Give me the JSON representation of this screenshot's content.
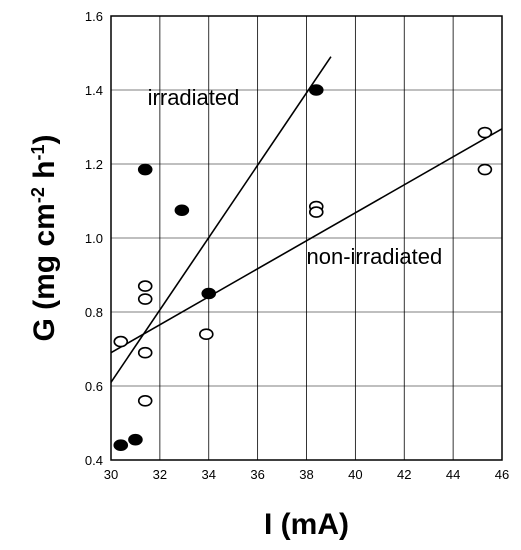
{
  "chart_data": {
    "type": "scatter",
    "xlabel": "I (mA)",
    "ylabel_parts": [
      "G (mg cm",
      "-2",
      " h",
      "-1",
      ")"
    ],
    "xlim": [
      30,
      46
    ],
    "ylim": [
      0.4,
      1.6
    ],
    "xticks": [
      "30",
      "32",
      "34",
      "36",
      "38",
      "40",
      "42",
      "44",
      "46"
    ],
    "yticks": [
      "0.4",
      "0.6",
      "0.8",
      "1.0",
      "1.2",
      "1.4",
      "1.6"
    ],
    "grid": true,
    "series": [
      {
        "name": "irradiated",
        "marker": "filled-circle",
        "points": [
          [
            30.4,
            0.44
          ],
          [
            31.0,
            0.455
          ],
          [
            31.4,
            1.185
          ],
          [
            32.9,
            1.075
          ],
          [
            34.0,
            0.85
          ],
          [
            38.4,
            1.4
          ]
        ],
        "fit_line": [
          [
            30.0,
            0.61
          ],
          [
            39.0,
            1.49
          ]
        ]
      },
      {
        "name": "non-irradiated",
        "marker": "open-circle",
        "points": [
          [
            30.4,
            0.72
          ],
          [
            31.4,
            0.87
          ],
          [
            31.4,
            0.835
          ],
          [
            31.4,
            0.69
          ],
          [
            31.4,
            0.56
          ],
          [
            33.9,
            0.74
          ],
          [
            38.4,
            1.085
          ],
          [
            38.4,
            1.07
          ],
          [
            45.3,
            1.285
          ],
          [
            45.3,
            1.185
          ]
        ],
        "fit_line": [
          [
            30.0,
            0.69
          ],
          [
            46.0,
            1.295
          ]
        ]
      }
    ],
    "annotations": [
      {
        "text": "irradiated",
        "x": 31.5,
        "y": 1.36
      },
      {
        "text": "non-irradiated",
        "x": 38.0,
        "y": 0.93
      }
    ]
  }
}
